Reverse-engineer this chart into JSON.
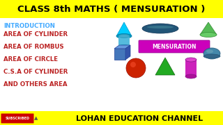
{
  "title": "CLASS 8th MATHS ( MENSURATION )",
  "title_bg": "#FFFF00",
  "title_color": "#000000",
  "title_fontsize": 9.5,
  "body_bg": "#FFFFFF",
  "footer_bg": "#FFFF00",
  "footer_text": "LOHAN EDUCATION CHANNEL",
  "footer_color": "#000000",
  "footer_fontsize": 8,
  "intro_text": "INTRODUCTION",
  "intro_color": "#44AAFF",
  "bullet_lines": [
    "AREA OF CYLINDER",
    "AREA OF ROMBUS",
    "AREA OF CIRCLE",
    "C.S.A OF CYLINDER",
    "AND OTHERS AREA"
  ],
  "bullet_color": "#BB2222",
  "bullet_fontsize": 6.2,
  "mensuration_label": "MENSURATION",
  "mensuration_bg": "#CC00BB",
  "mensuration_color": "#FFFFFF",
  "subscribed_bg": "#CC0000",
  "subscribed_text": "SUBSCRIBED",
  "subscribed_color": "#FFFFFF"
}
